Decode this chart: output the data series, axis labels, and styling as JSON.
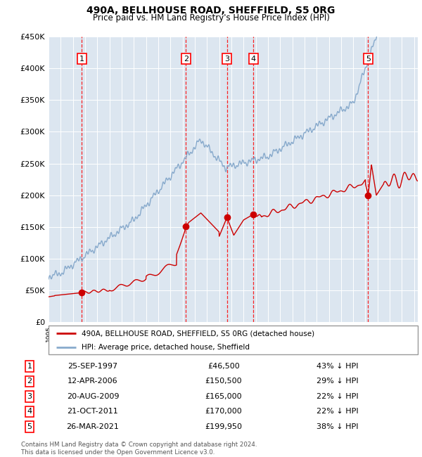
{
  "title": "490A, BELLHOUSE ROAD, SHEFFIELD, S5 0RG",
  "subtitle": "Price paid vs. HM Land Registry's House Price Index (HPI)",
  "background_color": "#dce6f0",
  "plot_bg_color": "#dce6f0",
  "hpi_color": "#88aacc",
  "price_color": "#cc0000",
  "sale_marker_color": "#cc0000",
  "ylim": [
    0,
    450000
  ],
  "yticks": [
    0,
    50000,
    100000,
    150000,
    200000,
    250000,
    300000,
    350000,
    400000,
    450000
  ],
  "sales": [
    {
      "num": 1,
      "date_label": "25-SEP-1997",
      "year": 1997.73,
      "price": 46500,
      "pct": "43%",
      "direction": "↓"
    },
    {
      "num": 2,
      "date_label": "12-APR-2006",
      "year": 2006.28,
      "price": 150500,
      "pct": "29%",
      "direction": "↓"
    },
    {
      "num": 3,
      "date_label": "20-AUG-2009",
      "year": 2009.64,
      "price": 165000,
      "pct": "22%",
      "direction": "↓"
    },
    {
      "num": 4,
      "date_label": "21-OCT-2011",
      "year": 2011.81,
      "price": 170000,
      "pct": "22%",
      "direction": "↓"
    },
    {
      "num": 5,
      "date_label": "26-MAR-2021",
      "year": 2021.23,
      "price": 199950,
      "pct": "38%",
      "direction": "↓"
    }
  ],
  "legend_entries": [
    "490A, BELLHOUSE ROAD, SHEFFIELD, S5 0RG (detached house)",
    "HPI: Average price, detached house, Sheffield"
  ],
  "footer": "Contains HM Land Registry data © Crown copyright and database right 2024.\nThis data is licensed under the Open Government Licence v3.0.",
  "xmin": 1995,
  "xmax": 2025.3
}
